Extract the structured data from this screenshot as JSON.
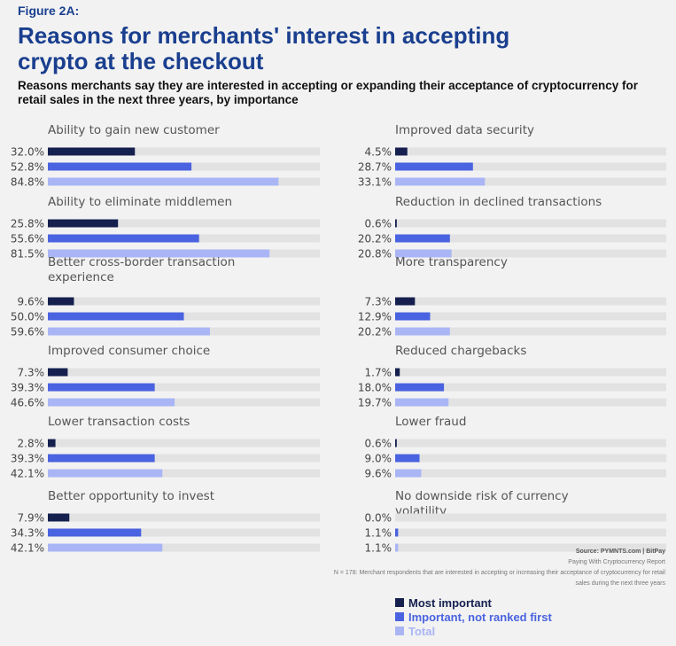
{
  "header": {
    "figure_label": "Figure 2A:",
    "title": "Reasons for merchants' interest in accepting crypto at the checkout",
    "subtitle": "Reasons merchants say they are interested in accepting or expanding their acceptance of cryptocurrency for retail sales in the next three years, by importance"
  },
  "colors": {
    "most_important": "#15204f",
    "important": "#4a63e0",
    "total": "#a9b5f5",
    "track": "#e2e2e2",
    "title": "#1a3f8f"
  },
  "chart_data": {
    "type": "bar",
    "orientation": "horizontal",
    "title": "Reasons for merchants' interest in accepting crypto at the checkout",
    "value_unit": "%",
    "xlim": [
      0,
      100
    ],
    "series_names": [
      "Most important",
      "Important, not ranked first",
      "Total"
    ],
    "panels": [
      {
        "category": "Ability to gain new customer",
        "values": [
          32.0,
          52.8,
          84.8
        ],
        "labels": [
          "32.0%",
          "52.8%",
          "84.8%"
        ]
      },
      {
        "category": "Improved data security",
        "values": [
          4.5,
          28.7,
          33.1
        ],
        "labels": [
          "4.5%",
          "28.7%",
          "33.1%"
        ]
      },
      {
        "category": "Ability to eliminate middlemen",
        "values": [
          25.8,
          55.6,
          81.5
        ],
        "labels": [
          "25.8%",
          "55.6%",
          "81.5%"
        ]
      },
      {
        "category": "Reduction in declined transactions",
        "values": [
          0.6,
          20.2,
          20.8
        ],
        "labels": [
          "0.6%",
          "20.2%",
          "20.8%"
        ]
      },
      {
        "category": "Better cross-border transaction experience",
        "values": [
          9.6,
          50.0,
          59.6
        ],
        "labels": [
          "9.6%",
          "50.0%",
          "59.6%"
        ]
      },
      {
        "category": "More transparency",
        "values": [
          7.3,
          12.9,
          20.2
        ],
        "labels": [
          "7.3%",
          "12.9%",
          "20.2%"
        ]
      },
      {
        "category": "Improved consumer choice",
        "values": [
          7.3,
          39.3,
          46.6
        ],
        "labels": [
          "7.3%",
          "39.3%",
          "46.6%"
        ]
      },
      {
        "category": "Reduced chargebacks",
        "values": [
          1.7,
          18.0,
          19.7
        ],
        "labels": [
          "1.7%",
          "18.0%",
          "19.7%"
        ]
      },
      {
        "category": "Lower transaction costs",
        "values": [
          2.8,
          39.3,
          42.1
        ],
        "labels": [
          "2.8%",
          "39.3%",
          "42.1%"
        ]
      },
      {
        "category": "Lower fraud",
        "values": [
          0.6,
          9.0,
          9.6
        ],
        "labels": [
          "0.6%",
          "9.0%",
          "9.6%"
        ]
      },
      {
        "category": "Better opportunity to invest",
        "values": [
          7.9,
          34.3,
          42.1
        ],
        "labels": [
          "7.9%",
          "34.3%",
          "42.1%"
        ]
      },
      {
        "category": "No downside risk of currency volatility",
        "values": [
          0.0,
          1.1,
          1.1
        ],
        "labels": [
          "0.0%",
          "1.1%",
          "1.1%"
        ]
      }
    ]
  },
  "legend": {
    "items": [
      {
        "label": "Most important",
        "color": "#15204f"
      },
      {
        "label": "Important, not ranked first",
        "color": "#4a63e0"
      },
      {
        "label": "Total",
        "color": "#a9b5f5"
      }
    ]
  },
  "footer": {
    "source": "Source: PYMNTS.com  |  BitPay",
    "report": "Paying With Cryptocurrency Report",
    "note": "N = 178: Merchant respondents that are interested in accepting or increasing their acceptance of cryptocurrency for retail sales during the next three years"
  }
}
